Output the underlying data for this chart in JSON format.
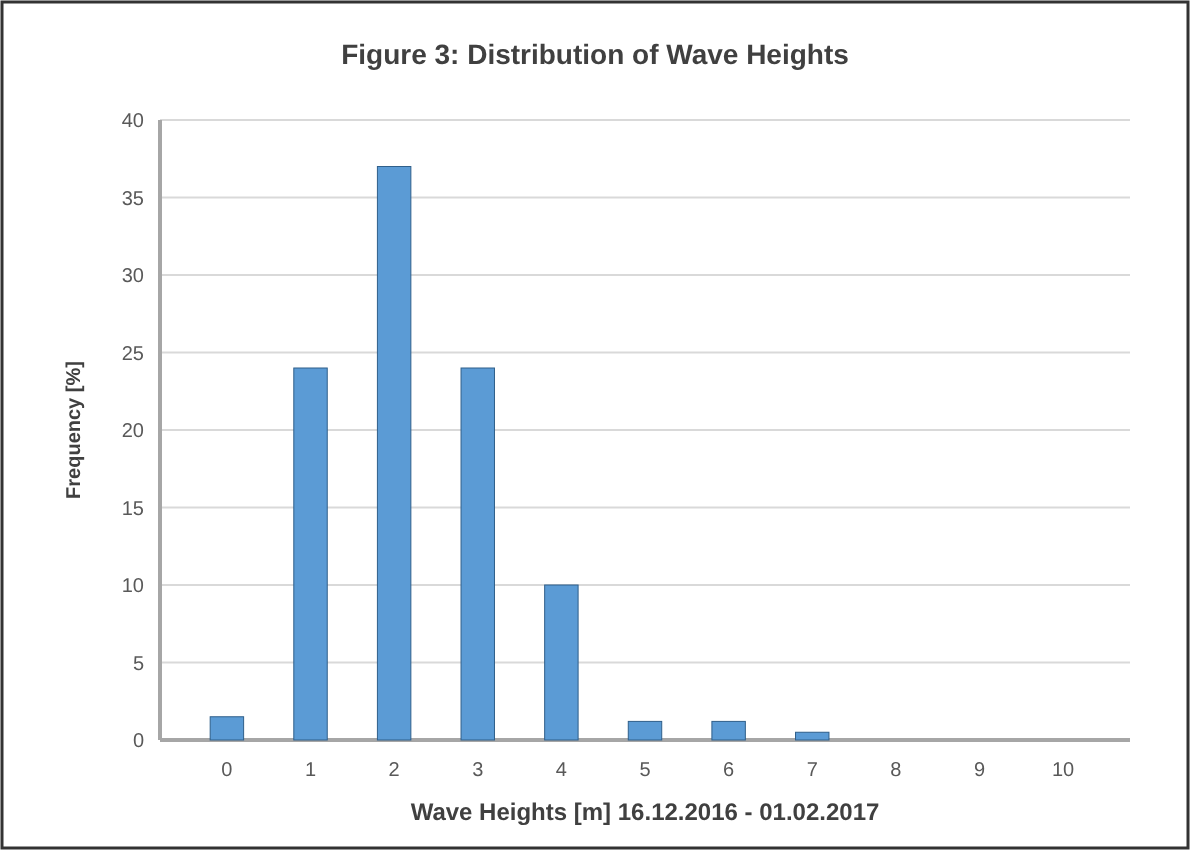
{
  "chart_data": {
    "type": "bar",
    "title": "Figure 3:  Distribution of Wave Heights",
    "xlabel": "Wave Heights [m] 16.12.2016 - 01.02.2017",
    "ylabel": "Frequency [%]",
    "categories": [
      "0",
      "1",
      "2",
      "3",
      "4",
      "5",
      "6",
      "7",
      "8",
      "9",
      "10"
    ],
    "values": [
      1.5,
      24,
      37,
      24,
      10,
      1.2,
      1.2,
      0.5,
      0,
      0,
      0
    ],
    "color": "#5b9bd5",
    "ylim": [
      0,
      40
    ],
    "yticks": [
      0,
      5,
      10,
      15,
      20,
      25,
      30,
      35,
      40
    ],
    "grid": "y"
  }
}
